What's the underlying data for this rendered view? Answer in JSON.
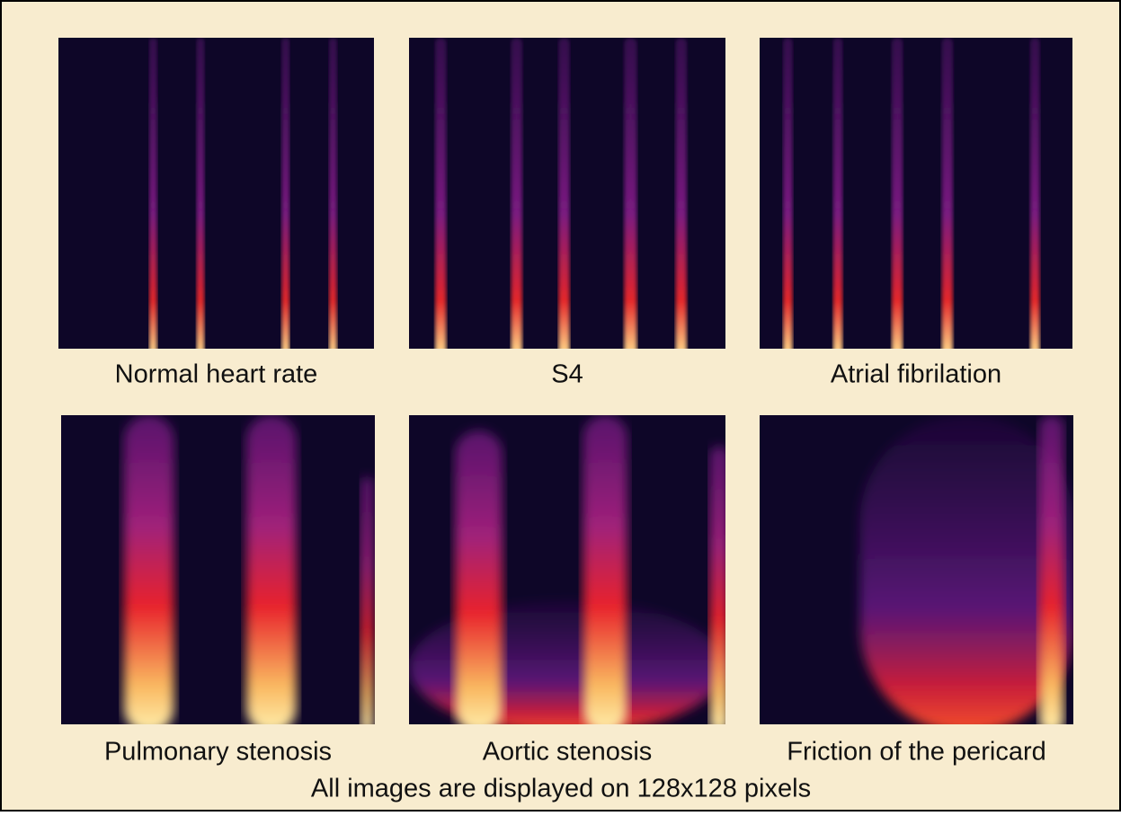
{
  "panels": [
    {
      "label": "Normal heart rate"
    },
    {
      "label": "S4"
    },
    {
      "label": "Atrial fibrilation"
    },
    {
      "label": "Pulmonary stenosis"
    },
    {
      "label": "Aortic stenosis"
    },
    {
      "label": "Friction of the pericard"
    }
  ],
  "caption": "All images are displayed on 128x128 pixels"
}
